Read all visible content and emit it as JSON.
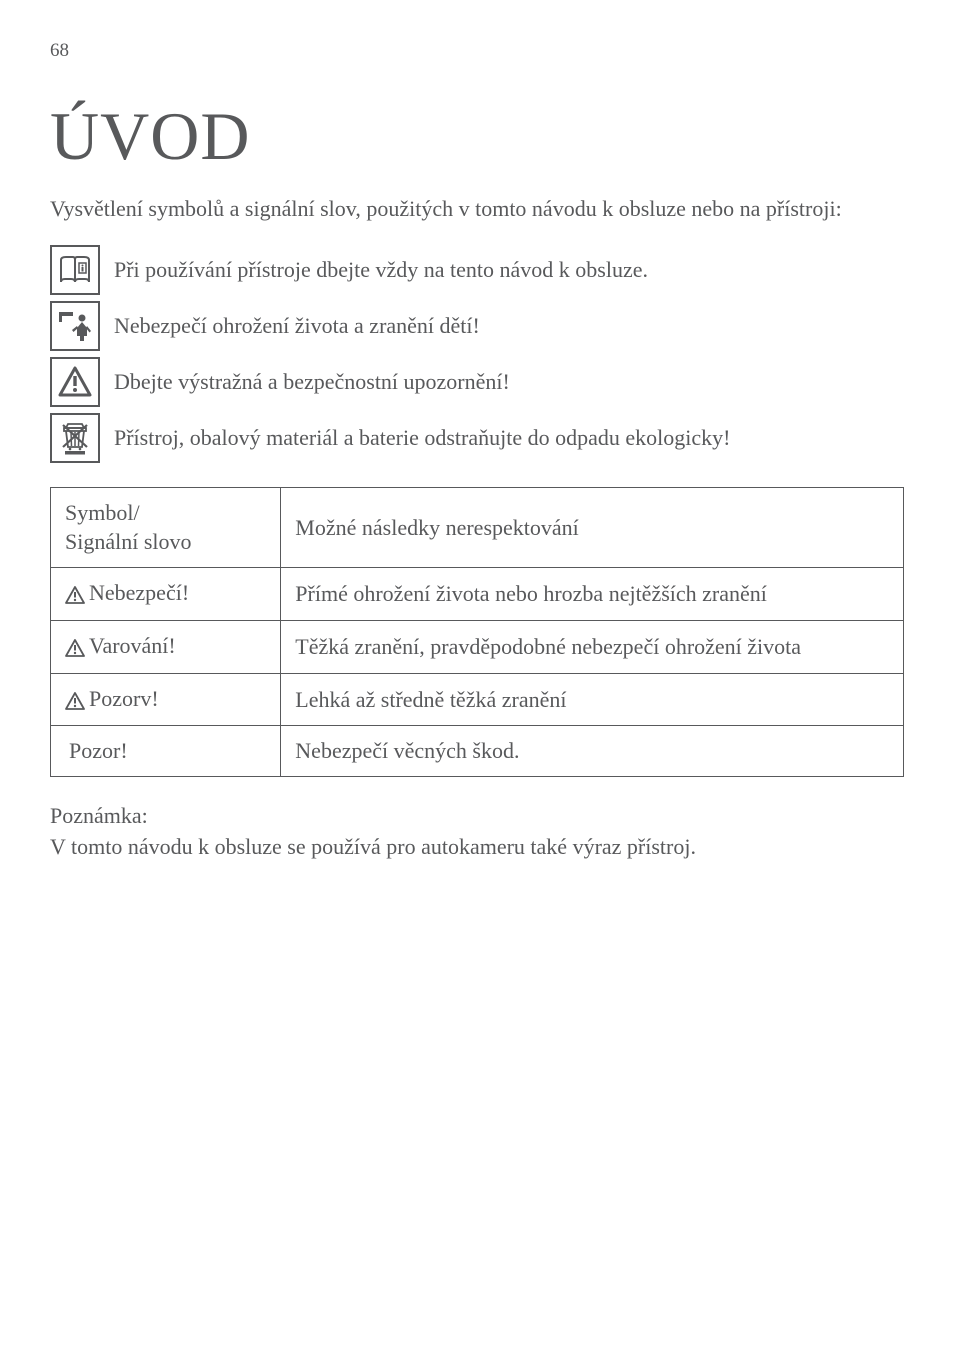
{
  "page_number": "68",
  "heading": "ÚVOD",
  "intro_text": "Vysvětlení symbolů a signální slov, použitých v tomto návodu k obsluze nebo na přístroji:",
  "icon_rows": [
    {
      "name": "manual-icon",
      "text": "Při používání přístroje dbejte vždy na tento návod k obsluze."
    },
    {
      "name": "child-icon",
      "text": "Nebezpečí ohrožení života a zranění dětí!"
    },
    {
      "name": "warning-icon",
      "text": "Dbejte výstražná a bezpečnostní upozornění!"
    },
    {
      "name": "weee-icon",
      "text": "Přístroj, obalový materiál a baterie odstraňujte do odpadu ekologicky!"
    }
  ],
  "table": {
    "header": {
      "col1_line1": "Symbol/",
      "col1_line2": "Signální slovo",
      "col2": "Možné následky nerespektování"
    },
    "rows": [
      {
        "has_triangle": true,
        "label": "Nebezpečí!",
        "desc": "Přímé ohrožení života nebo hrozba nejtěžších zranění"
      },
      {
        "has_triangle": true,
        "label": "Varování!",
        "desc": "Těžká zranění, pravděpodobné nebezpečí ohrožení života"
      },
      {
        "has_triangle": true,
        "label": "Pozorv!",
        "desc": "Lehká až středně těžká zranění"
      },
      {
        "has_triangle": false,
        "label": "Pozor!",
        "desc": "Nebezpečí věcných škod."
      }
    ]
  },
  "note_label": "Poznámka:",
  "note_text": "V tomto návodu k obsluze se používá pro autokameru také výraz přístroj.",
  "colors": {
    "text": "#58595b",
    "border": "#58595b",
    "background": "#ffffff"
  },
  "typography": {
    "heading_size_pt": 52,
    "body_size_pt": 17,
    "font_family": "serif-light"
  }
}
